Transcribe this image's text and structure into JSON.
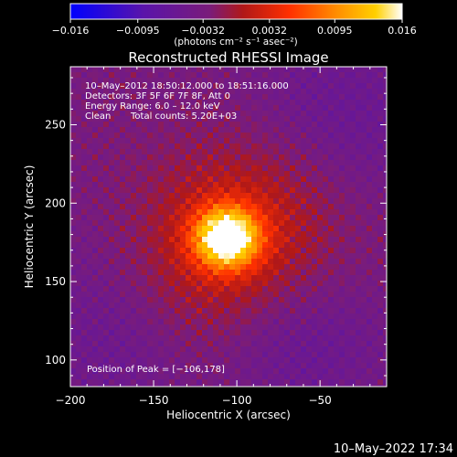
{
  "chart_data": {
    "type": "heatmap",
    "title": "Reconstructed RHESSI Image",
    "xlabel": "Heliocentric X (arcsec)",
    "ylabel": "Heliocentric Y (arcsec)",
    "xlim": [
      -200,
      -10
    ],
    "ylim": [
      83,
      287
    ],
    "x_ticks": [
      -200,
      -150,
      -100,
      -50
    ],
    "y_ticks": [
      100,
      150,
      200,
      250
    ],
    "x_tick_labels": [
      "−200",
      "−150",
      "−100",
      "−50"
    ],
    "y_tick_labels": [
      "100",
      "150",
      "200",
      "250"
    ],
    "colorbar": {
      "range": [
        -0.016,
        0.016
      ],
      "ticks": [
        -0.016,
        -0.0095,
        -0.0032,
        0.0032,
        0.0095,
        0.016
      ],
      "tick_labels": [
        "−0.016",
        "−0.0095",
        "−0.0032",
        "0.0032",
        "0.0095",
        "0.016"
      ],
      "unit_label": "(photons cm⁻² s⁻¹ asec⁻²)",
      "colors": [
        "#0000ff",
        "#5a14aa",
        "#7a1c7a",
        "#b01818",
        "#ff3000",
        "#ff8c00",
        "#ffd000",
        "#ffffff"
      ]
    },
    "peak": {
      "x": -106,
      "y": 178
    }
  },
  "info": {
    "time_range": "10–May–2012 18:50:12.000 to 18:51:16.000",
    "detectors": "Detectors: 3F 5F 6F 7F 8F, Att 0",
    "energy": "Energy Range: 6.0 – 12.0 keV",
    "method": "Clean",
    "counts": "Total counts: 5.20E+03"
  },
  "peak_label": "Position of Peak = [−106,178]",
  "footer_timestamp": "10–May–2022 17:34"
}
